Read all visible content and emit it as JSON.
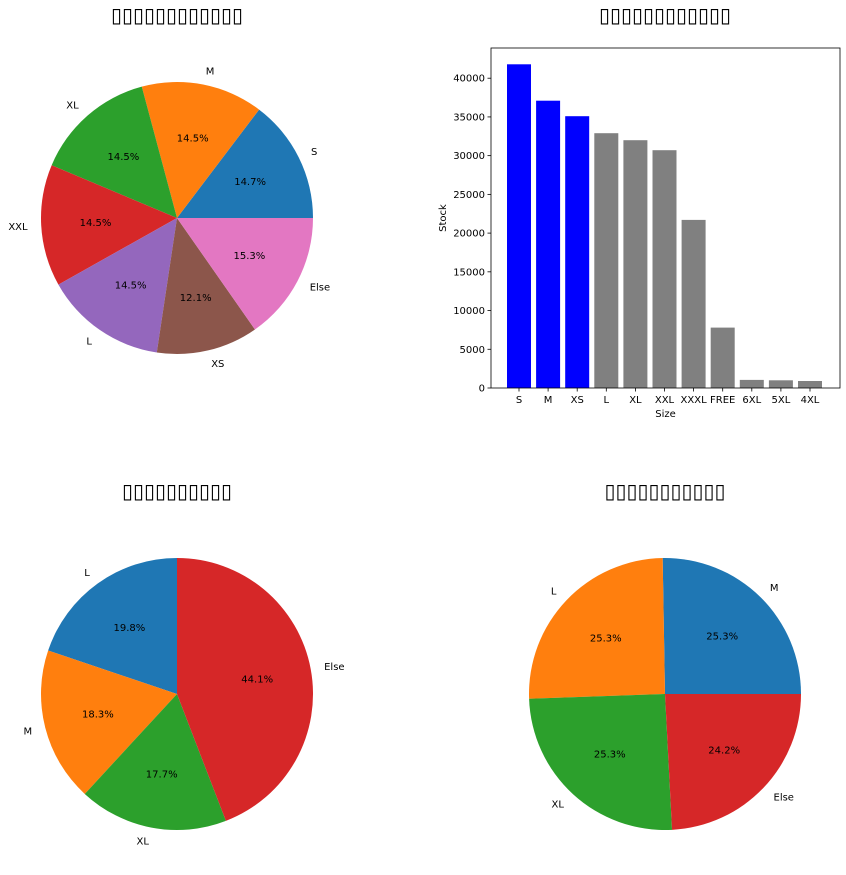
{
  "chart_data": [
    {
      "id": "pie1",
      "type": "pie",
      "title": "▯▯▯▯▯▯▯▯▯▯▯▯",
      "labels": [
        "S",
        "M",
        "XL",
        "XXL",
        "L",
        "XS",
        "Else"
      ],
      "values": [
        14.7,
        14.5,
        14.5,
        14.5,
        14.5,
        12.1,
        15.3
      ],
      "pct_labels": [
        "14.7%",
        "14.5%",
        "14.5%",
        "14.5%",
        "14.5%",
        "12.1%",
        "15.3%"
      ],
      "colors": [
        "#1f77b4",
        "#ff7f0e",
        "#2ca02c",
        "#d62728",
        "#9467bd",
        "#8c564b",
        "#e377c2"
      ],
      "start_angle": 0
    },
    {
      "id": "bar1",
      "type": "bar",
      "title": "▯▯▯▯▯▯▯▯▯▯▯▯",
      "categories": [
        "S",
        "M",
        "XS",
        "L",
        "XL",
        "XXL",
        "XXXL",
        "FREE",
        "6XL",
        "5XL",
        "4XL"
      ],
      "values": [
        41800,
        37100,
        35100,
        32900,
        32000,
        30700,
        21700,
        7800,
        1050,
        1000,
        900
      ],
      "colors": [
        "#0000ff",
        "#0000ff",
        "#0000ff",
        "#808080",
        "#808080",
        "#808080",
        "#808080",
        "#808080",
        "#808080",
        "#808080",
        "#808080"
      ],
      "xlabel": "Size",
      "ylabel": "Stock",
      "ylim": [
        0,
        43900
      ],
      "yticks": [
        0,
        5000,
        10000,
        15000,
        20000,
        25000,
        30000,
        35000,
        40000
      ],
      "grid": false
    },
    {
      "id": "pie2",
      "type": "pie",
      "title": "▯▯▯▯▯▯▯▯▯▯",
      "labels": [
        "L",
        "M",
        "XL",
        "Else"
      ],
      "values": [
        19.8,
        18.3,
        17.7,
        44.1
      ],
      "pct_labels": [
        "19.8%",
        "18.3%",
        "17.7%",
        "44.1%"
      ],
      "colors": [
        "#1f77b4",
        "#ff7f0e",
        "#2ca02c",
        "#d62728"
      ],
      "start_angle": 90
    },
    {
      "id": "pie3",
      "type": "pie",
      "title": "▯▯▯▯▯▯▯▯▯▯▯",
      "labels": [
        "M",
        "L",
        "XL",
        "Else"
      ],
      "values": [
        25.3,
        25.3,
        25.3,
        24.2
      ],
      "pct_labels": [
        "25.3%",
        "25.3%",
        "25.3%",
        "24.2%"
      ],
      "colors": [
        "#1f77b4",
        "#ff7f0e",
        "#2ca02c",
        "#d62728"
      ],
      "start_angle": 0
    }
  ]
}
